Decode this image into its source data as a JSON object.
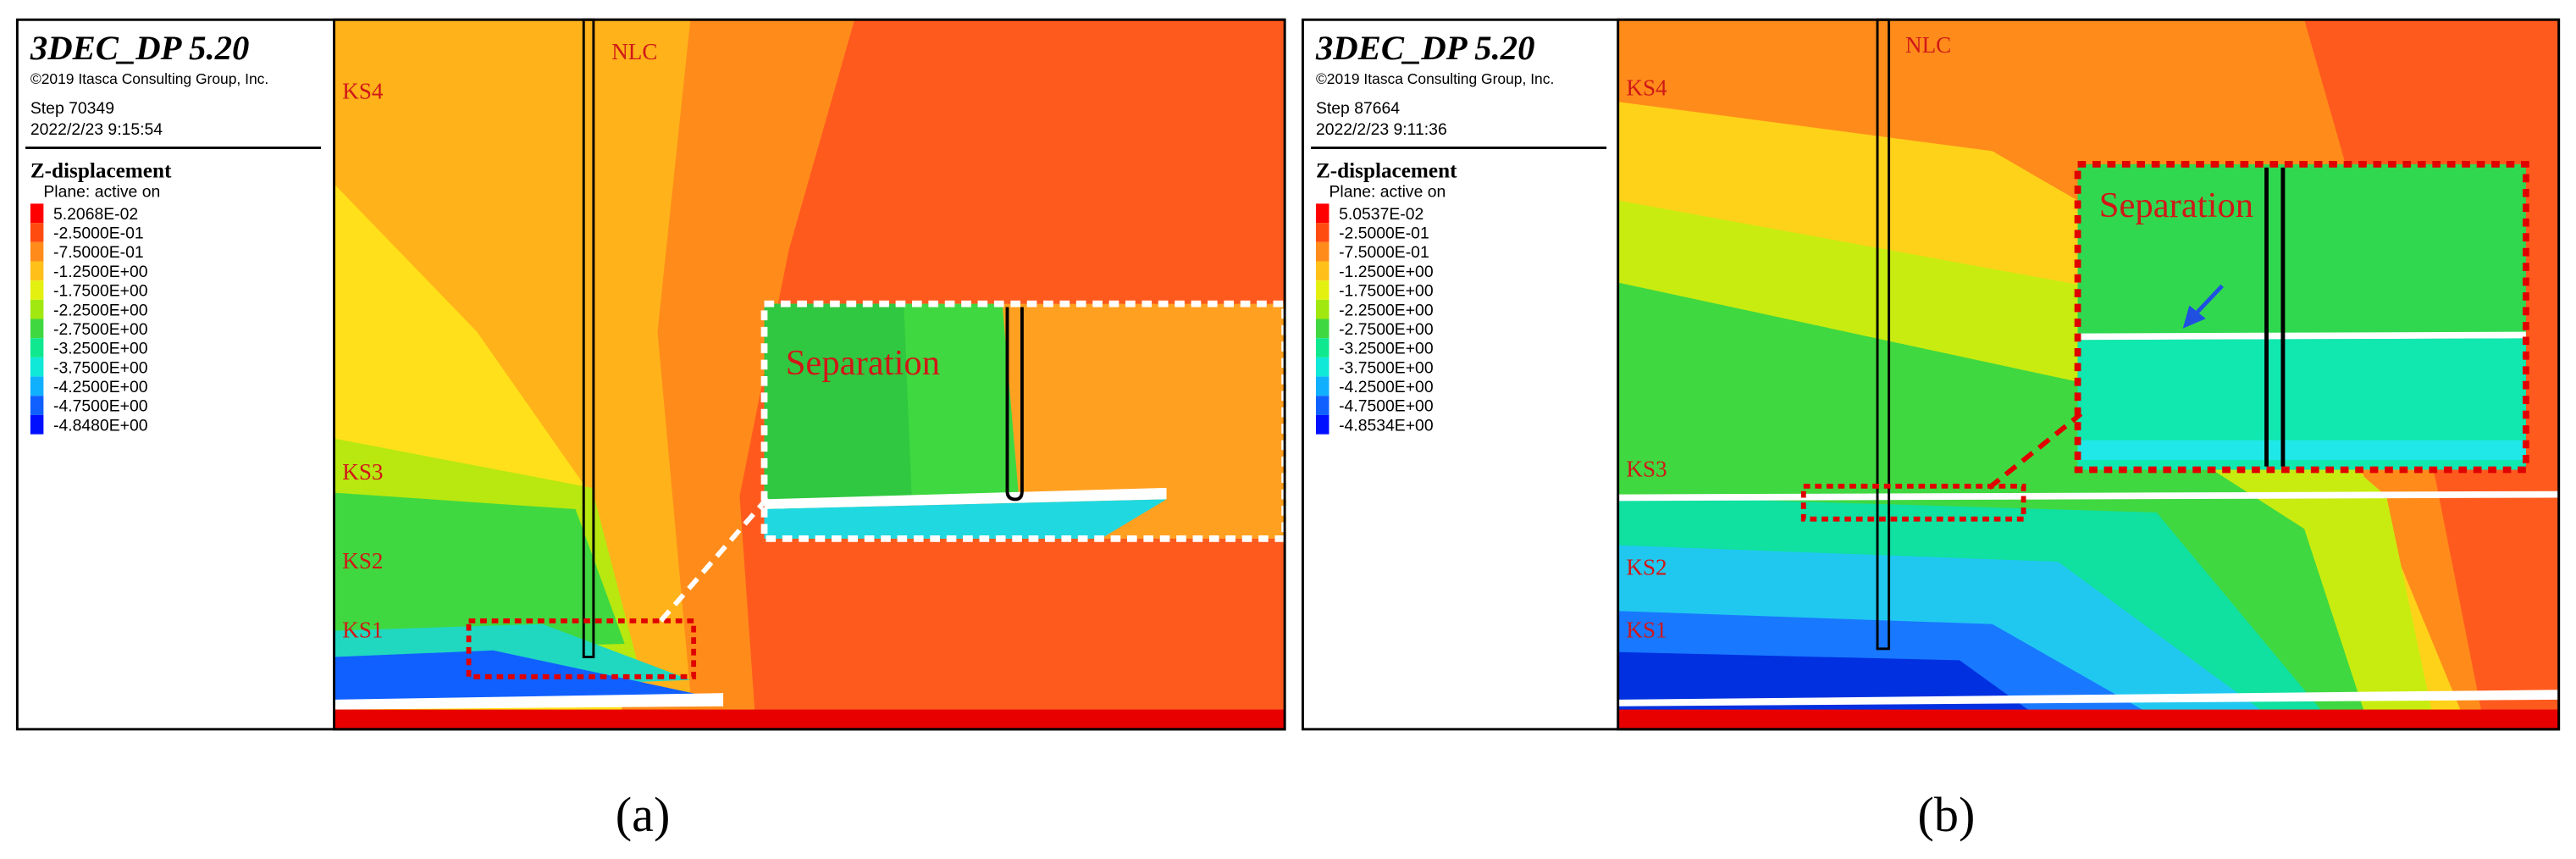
{
  "panels": [
    {
      "label": "(a)",
      "software": "3DEC_DP 5.20",
      "copyright": "©2019 Itasca Consulting Group, Inc.",
      "step": "Step 70349",
      "datetime": "2022/2/23 9:15:54",
      "legend_title": "Z-displacement",
      "legend_subtitle": "Plane: active on",
      "legend_entries": [
        {
          "label": "5.2068E-02",
          "color": "#ff0000"
        },
        {
          "label": "-2.5000E-01",
          "color": "#ff4a10"
        },
        {
          "label": "-7.5000E-01",
          "color": "#ff8c1a"
        },
        {
          "label": "-1.2500E+00",
          "color": "#ffc01a"
        },
        {
          "label": "-1.7500E+00",
          "color": "#e4f010"
        },
        {
          "label": "-2.2500E+00",
          "color": "#a0e810"
        },
        {
          "label": "-2.7500E+00",
          "color": "#40d840"
        },
        {
          "label": "-3.2500E+00",
          "color": "#10e890"
        },
        {
          "label": "-3.7500E+00",
          "color": "#10e8d8"
        },
        {
          "label": "-4.2500E+00",
          "color": "#10b0ff"
        },
        {
          "label": "-4.7500E+00",
          "color": "#1060ff"
        },
        {
          "label": "-4.8480E+00",
          "color": "#0010ff"
        }
      ],
      "annotations": {
        "nlc": "NLC",
        "ks4": "KS4",
        "ks3": "KS3",
        "ks2": "KS2",
        "ks1": "KS1",
        "separation": "Separation"
      }
    },
    {
      "label": "(b)",
      "software": "3DEC_DP 5.20",
      "copyright": "©2019 Itasca Consulting Group, Inc.",
      "step": "Step 87664",
      "datetime": "2022/2/23 9:11:36",
      "legend_title": "Z-displacement",
      "legend_subtitle": "Plane: active on",
      "legend_entries": [
        {
          "label": "5.0537E-02",
          "color": "#ff0000"
        },
        {
          "label": "-2.5000E-01",
          "color": "#ff4a10"
        },
        {
          "label": "-7.5000E-01",
          "color": "#ff8c1a"
        },
        {
          "label": "-1.2500E+00",
          "color": "#ffc01a"
        },
        {
          "label": "-1.7500E+00",
          "color": "#e4f010"
        },
        {
          "label": "-2.2500E+00",
          "color": "#a0e810"
        },
        {
          "label": "-2.7500E+00",
          "color": "#40d840"
        },
        {
          "label": "-3.2500E+00",
          "color": "#10e890"
        },
        {
          "label": "-3.7500E+00",
          "color": "#10e8d8"
        },
        {
          "label": "-4.2500E+00",
          "color": "#10b0ff"
        },
        {
          "label": "-4.7500E+00",
          "color": "#1060ff"
        },
        {
          "label": "-4.8534E+00",
          "color": "#0010ff"
        }
      ],
      "annotations": {
        "nlc": "NLC",
        "ks4": "KS4",
        "ks3": "KS3",
        "ks2": "KS2",
        "ks1": "KS1",
        "separation": "Separation"
      }
    }
  ]
}
